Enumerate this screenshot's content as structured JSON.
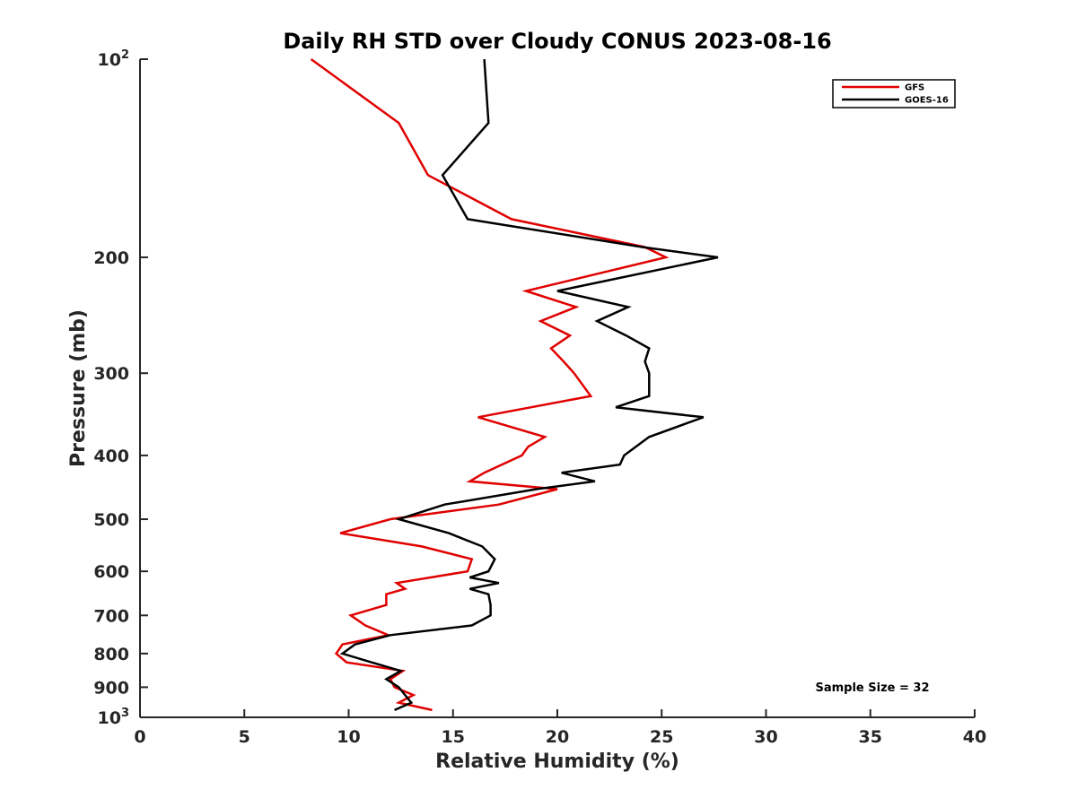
{
  "chart_data": {
    "type": "line",
    "title": "Daily RH STD over Cloudy CONUS 2023-08-16",
    "xlabel": "Relative Humidity (%)",
    "ylabel": "Pressure (mb)",
    "xlim": [
      0,
      40
    ],
    "ylim": [
      100,
      1000
    ],
    "y_scale": "log",
    "y_reversed": true,
    "x_ticks": [
      "0",
      "5",
      "10",
      "15",
      "20",
      "25",
      "30",
      "35",
      "40"
    ],
    "y_ticks": [
      {
        "value": 100,
        "base": "10",
        "exp": "2"
      },
      {
        "value": 200,
        "label": "200"
      },
      {
        "value": 300,
        "label": "300"
      },
      {
        "value": 400,
        "label": "400"
      },
      {
        "value": 500,
        "label": "500"
      },
      {
        "value": 600,
        "label": "600"
      },
      {
        "value": 700,
        "label": "700"
      },
      {
        "value": 800,
        "label": "800"
      },
      {
        "value": 900,
        "label": "900"
      },
      {
        "value": 1000,
        "base": "10",
        "exp": "3"
      }
    ],
    "grid": false,
    "legend_position": "top-right",
    "annotation": "Sample Size = 32",
    "series": [
      {
        "name": "GFS",
        "color": "#e00000",
        "points": [
          [
            8.2,
            100
          ],
          [
            12.4,
            125
          ],
          [
            13.8,
            150
          ],
          [
            17.8,
            175
          ],
          [
            24.2,
            193
          ],
          [
            25.2,
            200
          ],
          [
            18.5,
            225
          ],
          [
            20.9,
            238
          ],
          [
            19.2,
            250
          ],
          [
            20.6,
            263
          ],
          [
            19.7,
            275
          ],
          [
            20.3,
            288
          ],
          [
            20.8,
            300
          ],
          [
            21.6,
            325
          ],
          [
            16.2,
            350
          ],
          [
            19.4,
            375
          ],
          [
            18.6,
            388
          ],
          [
            18.3,
            400
          ],
          [
            16.5,
            425
          ],
          [
            15.8,
            438
          ],
          [
            20.0,
            450
          ],
          [
            17.2,
            475
          ],
          [
            12.0,
            500
          ],
          [
            9.6,
            525
          ],
          [
            13.5,
            550
          ],
          [
            15.9,
            575
          ],
          [
            15.7,
            600
          ],
          [
            12.3,
            625
          ],
          [
            12.7,
            638
          ],
          [
            11.8,
            650
          ],
          [
            11.8,
            675
          ],
          [
            10.1,
            700
          ],
          [
            10.8,
            725
          ],
          [
            11.9,
            750
          ],
          [
            9.7,
            775
          ],
          [
            9.4,
            800
          ],
          [
            9.9,
            825
          ],
          [
            12.6,
            850
          ],
          [
            12.0,
            875
          ],
          [
            12.2,
            900
          ],
          [
            13.1,
            925
          ],
          [
            12.4,
            950
          ],
          [
            14.0,
            975
          ]
        ]
      },
      {
        "name": "GOES-16",
        "color": "#000000",
        "points": [
          [
            16.5,
            100
          ],
          [
            16.7,
            125
          ],
          [
            14.5,
            150
          ],
          [
            15.7,
            175
          ],
          [
            24.1,
            193
          ],
          [
            27.7,
            200
          ],
          [
            20.0,
            225
          ],
          [
            23.4,
            238
          ],
          [
            21.9,
            250
          ],
          [
            23.3,
            263
          ],
          [
            24.4,
            275
          ],
          [
            24.2,
            288
          ],
          [
            24.4,
            300
          ],
          [
            24.4,
            325
          ],
          [
            22.8,
            338
          ],
          [
            27.0,
            350
          ],
          [
            24.4,
            375
          ],
          [
            23.2,
            400
          ],
          [
            23.0,
            413
          ],
          [
            20.2,
            425
          ],
          [
            21.8,
            438
          ],
          [
            19.0,
            450
          ],
          [
            14.6,
            475
          ],
          [
            12.4,
            500
          ],
          [
            14.8,
            525
          ],
          [
            16.4,
            550
          ],
          [
            17.0,
            575
          ],
          [
            16.7,
            600
          ],
          [
            15.8,
            613
          ],
          [
            17.2,
            625
          ],
          [
            15.8,
            638
          ],
          [
            16.7,
            650
          ],
          [
            16.8,
            675
          ],
          [
            16.8,
            700
          ],
          [
            15.9,
            725
          ],
          [
            12.0,
            750
          ],
          [
            10.3,
            775
          ],
          [
            9.7,
            800
          ],
          [
            11.1,
            825
          ],
          [
            12.5,
            850
          ],
          [
            11.8,
            875
          ],
          [
            12.4,
            900
          ],
          [
            12.7,
            925
          ],
          [
            13.0,
            950
          ],
          [
            12.2,
            975
          ]
        ]
      }
    ]
  }
}
